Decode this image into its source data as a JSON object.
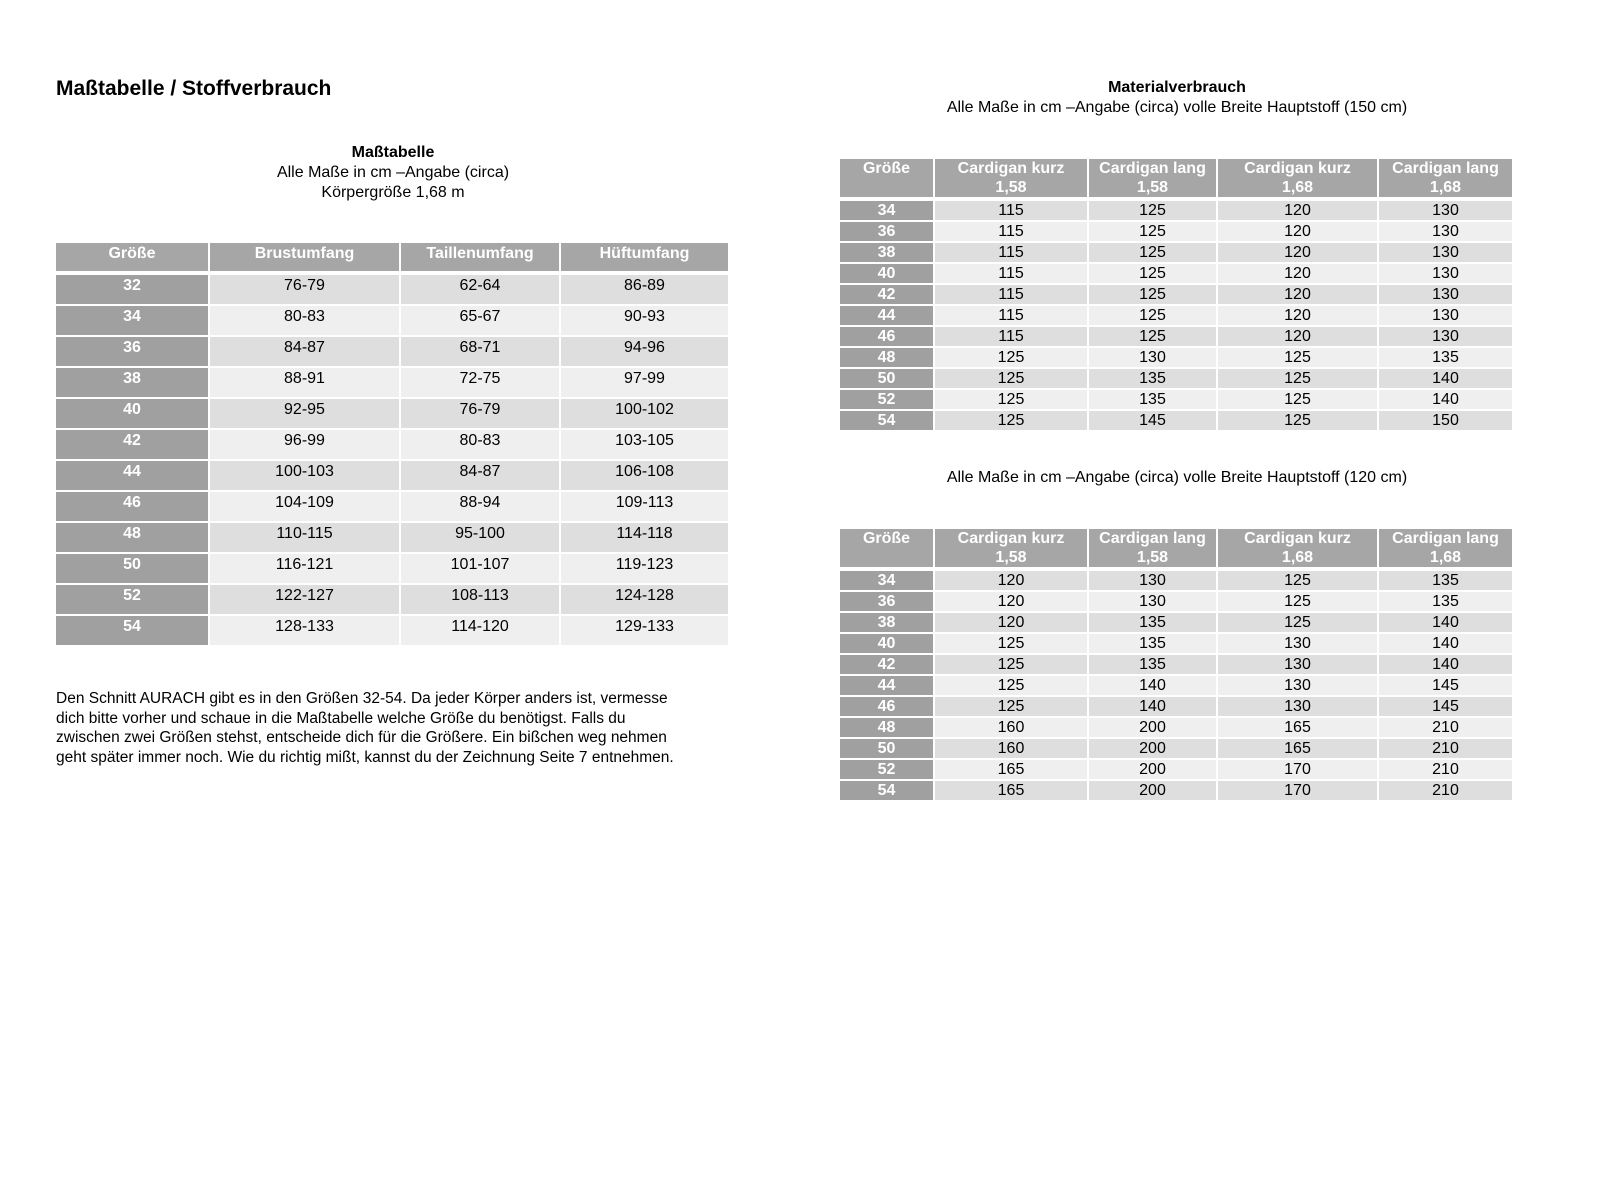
{
  "page_title": "Maßtabelle / Stoffverbrauch",
  "mass_section": {
    "heading": "Maßtabelle",
    "subtitle1": "Alle Maße in cm –Angabe (circa)",
    "subtitle2": "Körpergröße 1,68 m",
    "columns": [
      "Größe",
      "Brustumfang",
      "Taillenumfang",
      "Hüftumfang"
    ],
    "rows": [
      [
        "32",
        "76-79",
        "62-64",
        "86-89"
      ],
      [
        "34",
        "80-83",
        "65-67",
        "90-93"
      ],
      [
        "36",
        "84-87",
        "68-71",
        "94-96"
      ],
      [
        "38",
        "88-91",
        "72-75",
        "97-99"
      ],
      [
        "40",
        "92-95",
        "76-79",
        "100-102"
      ],
      [
        "42",
        "96-99",
        "80-83",
        "103-105"
      ],
      [
        "44",
        "100-103",
        "84-87",
        "106-108"
      ],
      [
        "46",
        "104-109",
        "88-94",
        "109-113"
      ],
      [
        "48",
        "110-115",
        "95-100",
        "114-118"
      ],
      [
        "50",
        "116-121",
        "101-107",
        "119-123"
      ],
      [
        "52",
        "122-127",
        "108-113",
        "124-128"
      ],
      [
        "54",
        "128-133",
        "114-120",
        "129-133"
      ]
    ]
  },
  "description": [
    "Den Schnitt AURACH gibt es in den Größen 32-54. Da jeder Körper anders ist, vermesse",
    "dich bitte vorher und schaue in die Maßtabelle welche Größe du benötigst. Falls du",
    "zwischen zwei Größen stehst, entscheide dich für die Größere. Ein bißchen weg nehmen",
    "geht später immer noch.  Wie du richtig mißt, kannst du der Zeichnung Seite 7 entnehmen."
  ],
  "material_section": {
    "heading": "Materialverbrauch",
    "columns": [
      [
        "Größe",
        ""
      ],
      [
        "Cardigan kurz",
        "1,58"
      ],
      [
        "Cardigan lang",
        "1,58"
      ],
      [
        "Cardigan kurz",
        "1,68"
      ],
      [
        "Cardigan lang",
        "1,68"
      ]
    ],
    "table_150": {
      "subtitle": "Alle Maße in cm –Angabe (circa) volle Breite Hauptstoff (150 cm)",
      "rows": [
        [
          "34",
          "115",
          "125",
          "120",
          "130"
        ],
        [
          "36",
          "115",
          "125",
          "120",
          "130"
        ],
        [
          "38",
          "115",
          "125",
          "120",
          "130"
        ],
        [
          "40",
          "115",
          "125",
          "120",
          "130"
        ],
        [
          "42",
          "115",
          "125",
          "120",
          "130"
        ],
        [
          "44",
          "115",
          "125",
          "120",
          "130"
        ],
        [
          "46",
          "115",
          "125",
          "120",
          "130"
        ],
        [
          "48",
          "125",
          "130",
          "125",
          "135"
        ],
        [
          "50",
          "125",
          "135",
          "125",
          "140"
        ],
        [
          "52",
          "125",
          "135",
          "125",
          "140"
        ],
        [
          "54",
          "125",
          "145",
          "125",
          "150"
        ]
      ]
    },
    "table_120": {
      "subtitle": "Alle Maße in cm –Angabe (circa) volle Breite Hauptstoff (120 cm)",
      "rows": [
        [
          "34",
          "120",
          "130",
          "125",
          "135"
        ],
        [
          "36",
          "120",
          "130",
          "125",
          "135"
        ],
        [
          "38",
          "120",
          "135",
          "125",
          "140"
        ],
        [
          "40",
          "125",
          "135",
          "130",
          "140"
        ],
        [
          "42",
          "125",
          "135",
          "130",
          "140"
        ],
        [
          "44",
          "125",
          "140",
          "130",
          "145"
        ],
        [
          "46",
          "125",
          "140",
          "130",
          "145"
        ],
        [
          "48",
          "160",
          "200",
          "165",
          "210"
        ],
        [
          "50",
          "160",
          "200",
          "165",
          "210"
        ],
        [
          "52",
          "165",
          "200",
          "170",
          "210"
        ],
        [
          "54",
          "165",
          "200",
          "170",
          "210"
        ]
      ]
    }
  }
}
